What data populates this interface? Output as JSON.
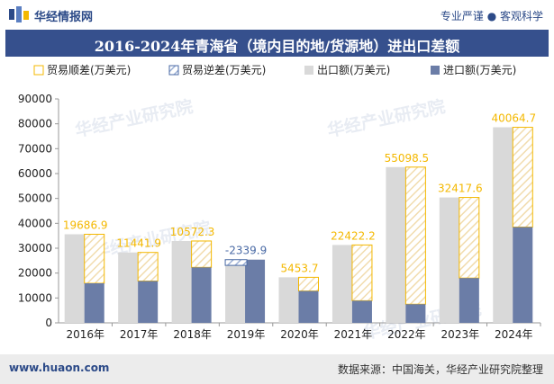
{
  "header": {
    "site_name": "华经情报网",
    "slogan": "专业严谨 ● 客观科学"
  },
  "watermark": "华经产业研究院",
  "footer": {
    "url": "www.huaon.com",
    "source": "数据来源：中国海关，华经产业研究院整理"
  },
  "colors": {
    "header_bar": "#36508d",
    "export_bar": "#d9d9d9",
    "import_bar": "#6b7da7",
    "surplus_outline": "#f4b800",
    "deficit_outline": "#4a6aa5",
    "surplus_label": "#f4b800",
    "deficit_label": "#4a6aa5"
  },
  "chart_data": {
    "type": "bar",
    "title": "2016-2024年青海省（境内目的地/货源地）进出口差额",
    "categories": [
      "2016年",
      "2017年",
      "2018年",
      "2019年",
      "2020年",
      "2021年",
      "2022年",
      "2023年",
      "2024年"
    ],
    "series": [
      {
        "name": "贸易顺差(万美元)",
        "values": [
          19686.9,
          11441.9,
          10572.3,
          null,
          5453.7,
          22422.2,
          55098.5,
          32417.6,
          40064.7
        ]
      },
      {
        "name": "贸易逆差(万美元)",
        "values": [
          null,
          null,
          null,
          -2339.9,
          null,
          null,
          null,
          null,
          null
        ]
      },
      {
        "name": "出口额(万美元)",
        "values": [
          35600,
          28300,
          32900,
          23100,
          18300,
          31300,
          62600,
          50400,
          78600
        ]
      },
      {
        "name": "进口额(万美元)",
        "values": [
          15900,
          16800,
          22300,
          25400,
          12800,
          8900,
          7500,
          18000,
          38500
        ]
      }
    ],
    "data_labels": [
      "19686.9",
      "11441.9",
      "10572.3",
      "-2339.9",
      "5453.7",
      "22422.2",
      "55098.5",
      "32417.6",
      "40064.7"
    ],
    "ylim": [
      0,
      90000
    ],
    "yticks": [
      0,
      10000,
      20000,
      30000,
      40000,
      50000,
      60000,
      70000,
      80000,
      90000
    ],
    "legend_position": "top",
    "grid": false
  }
}
